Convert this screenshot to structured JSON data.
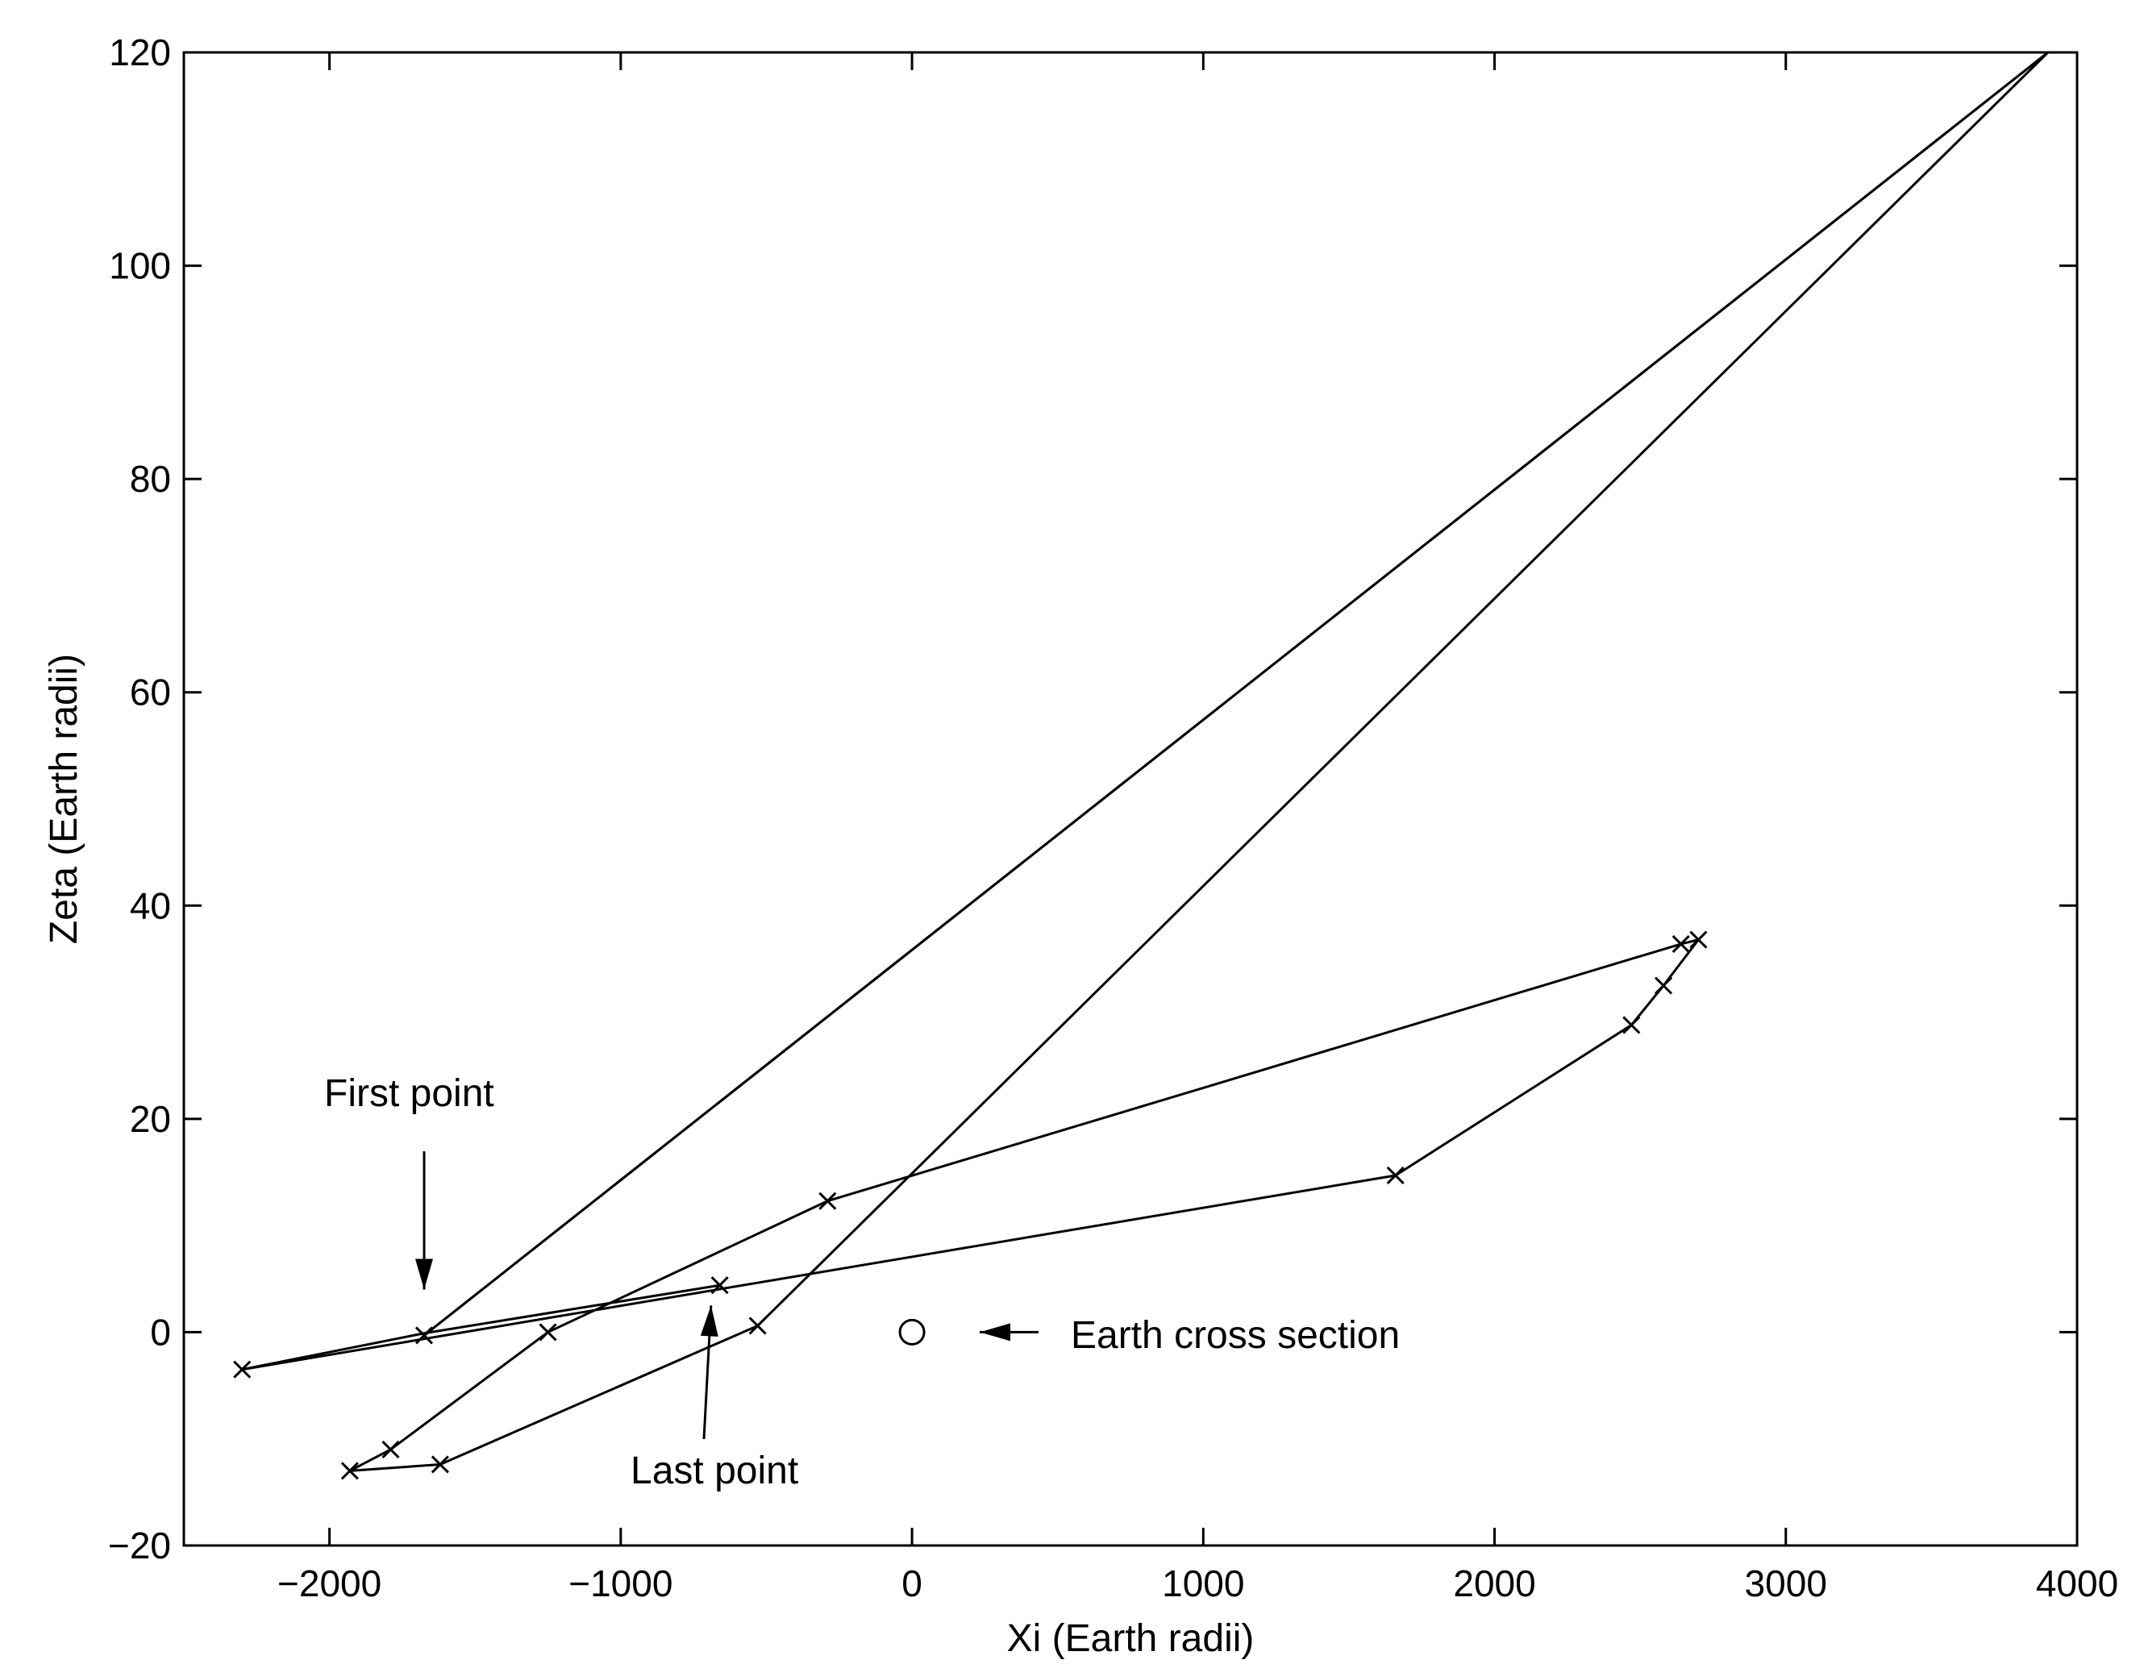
{
  "chart_data": {
    "type": "line",
    "title": "",
    "xlabel": "Xi (Earth radii)",
    "ylabel": "Zeta (Earth radii)",
    "xlim": [
      -2500,
      4000
    ],
    "ylim": [
      -20,
      120
    ],
    "xticks": [
      -2000,
      -1000,
      0,
      1000,
      2000,
      3000,
      4000
    ],
    "xtick_labels": [
      "−2000",
      "−1000",
      "0",
      "1000",
      "2000",
      "3000",
      "4000"
    ],
    "yticks": [
      -20,
      0,
      20,
      40,
      60,
      80,
      100,
      120
    ],
    "ytick_labels": [
      "−20",
      "0",
      "20",
      "40",
      "60",
      "80",
      "100",
      "120"
    ],
    "grid": false,
    "line_color": "#000000",
    "series": [
      {
        "marker": "x",
        "points": [
          {
            "x": -1675,
            "y": -0.3,
            "marked": true
          },
          {
            "x": 3900,
            "y": 120,
            "marked": false
          },
          {
            "x": -530,
            "y": 0.6,
            "marked": true
          },
          {
            "x": -1620,
            "y": -12.4,
            "marked": true
          },
          {
            "x": -1930,
            "y": -13.0,
            "marked": true
          },
          {
            "x": -1790,
            "y": -11.0,
            "marked": true
          },
          {
            "x": -1250,
            "y": 0.0,
            "marked": true
          },
          {
            "x": -290,
            "y": 12.3,
            "marked": true
          },
          {
            "x": 2640,
            "y": 36.4,
            "marked": true
          },
          {
            "x": 2700,
            "y": 36.8,
            "marked": true
          },
          {
            "x": 2580,
            "y": 32.5,
            "marked": true
          },
          {
            "x": 2470,
            "y": 28.8,
            "marked": true
          },
          {
            "x": 1660,
            "y": 14.7,
            "marked": true
          },
          {
            "x": -2300,
            "y": -3.5,
            "marked": true
          },
          {
            "x": -1675,
            "y": -0.1,
            "marked": false
          },
          {
            "x": -660,
            "y": 4.4,
            "marked": true
          }
        ]
      },
      {
        "marker": "x",
        "points": [
          {
            "x": -1675,
            "y": -0.3,
            "marked": false
          },
          {
            "x": 3900,
            "y": 120,
            "marked": false
          }
        ]
      }
    ],
    "earth_point": {
      "x": 0,
      "y": 0,
      "marker": "o"
    },
    "annotations": [
      {
        "text": "First point",
        "arrow_to": {
          "x": -1675,
          "y": 4
        }
      },
      {
        "text": "Last point",
        "arrow_to": {
          "x": -690,
          "y": 2.5
        }
      },
      {
        "text": "Earth cross section",
        "arrow_to": {
          "x": 250,
          "y": 0
        }
      }
    ]
  }
}
